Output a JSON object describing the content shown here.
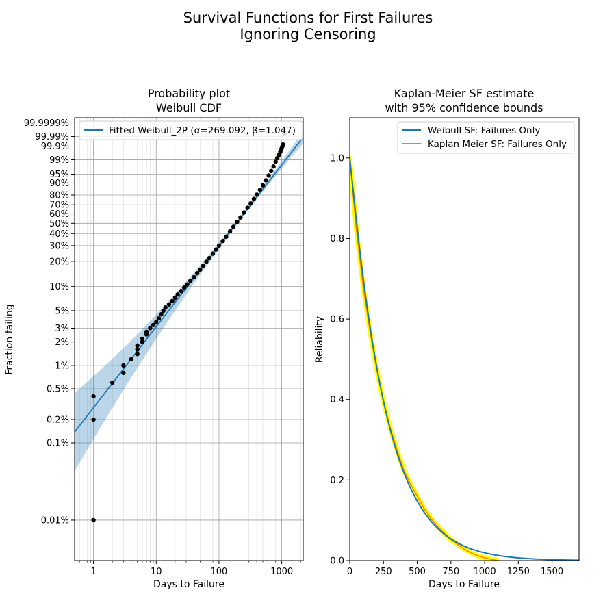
{
  "figure": {
    "title_line1": "Survival Functions for First Failures",
    "title_line2": "Ignoring Censoring"
  },
  "chart_data": [
    {
      "type": "scatter",
      "title_line1": "Probability plot",
      "title_line2": "Weibull CDF",
      "xlabel": "Days to Failure",
      "ylabel": "Fraction failing",
      "x_scale": "log",
      "y_scale": "weibull",
      "xlim": [
        0.5,
        2200
      ],
      "ylim": [
        3e-05,
        0.9999999
      ],
      "x_ticks": [
        {
          "v": 1,
          "label": "1"
        },
        {
          "v": 10,
          "label": "10"
        },
        {
          "v": 100,
          "label": "100"
        },
        {
          "v": 1000,
          "label": "1000"
        }
      ],
      "y_ticks": [
        {
          "v": 0.0001,
          "label": "0.01%"
        },
        {
          "v": 0.001,
          "label": "0.1%"
        },
        {
          "v": 0.002,
          "label": "0.2%"
        },
        {
          "v": 0.005,
          "label": "0.5%"
        },
        {
          "v": 0.01,
          "label": "1%"
        },
        {
          "v": 0.02,
          "label": "2%"
        },
        {
          "v": 0.03,
          "label": "3%"
        },
        {
          "v": 0.05,
          "label": "5%"
        },
        {
          "v": 0.1,
          "label": "10%"
        },
        {
          "v": 0.2,
          "label": "20%"
        },
        {
          "v": 0.3,
          "label": "30%"
        },
        {
          "v": 0.4,
          "label": "40%"
        },
        {
          "v": 0.5,
          "label": "50%"
        },
        {
          "v": 0.6,
          "label": "60%"
        },
        {
          "v": 0.7,
          "label": "70%"
        },
        {
          "v": 0.8,
          "label": "80%"
        },
        {
          "v": 0.9,
          "label": "90%"
        },
        {
          "v": 0.95,
          "label": "95%"
        },
        {
          "v": 0.99,
          "label": "99%"
        },
        {
          "v": 0.999,
          "label": "99.9%"
        },
        {
          "v": 0.9999,
          "label": "99.99%"
        },
        {
          "v": 0.999999,
          "label": "99.9999%"
        }
      ],
      "grid": true,
      "legend_position": "top-right",
      "fit": {
        "name": "Fitted Weibull_2P (α=269.092, β=1.047)",
        "alpha": 269.092,
        "beta": 1.047,
        "color": "#1f77b4",
        "band_color": "#1f77b4"
      },
      "points_color": "#000000",
      "points": [
        [
          1,
          0.0001
        ],
        [
          1,
          0.002
        ],
        [
          1,
          0.004
        ],
        [
          2,
          0.006
        ],
        [
          3,
          0.008
        ],
        [
          3,
          0.01
        ],
        [
          4,
          0.012
        ],
        [
          5,
          0.014
        ],
        [
          5,
          0.016
        ],
        [
          5,
          0.018
        ],
        [
          6,
          0.02
        ],
        [
          6,
          0.022
        ],
        [
          7,
          0.025
        ],
        [
          7,
          0.027
        ],
        [
          8,
          0.03
        ],
        [
          9,
          0.033
        ],
        [
          10,
          0.036
        ],
        [
          11,
          0.04
        ],
        [
          12,
          0.045
        ],
        [
          13,
          0.05
        ],
        [
          14,
          0.055
        ],
        [
          16,
          0.06
        ],
        [
          18,
          0.066
        ],
        [
          20,
          0.073
        ],
        [
          22,
          0.08
        ],
        [
          25,
          0.088
        ],
        [
          28,
          0.097
        ],
        [
          31,
          0.106
        ],
        [
          35,
          0.117
        ],
        [
          40,
          0.13
        ],
        [
          45,
          0.145
        ],
        [
          50,
          0.16
        ],
        [
          56,
          0.178
        ],
        [
          63,
          0.198
        ],
        [
          70,
          0.218
        ],
        [
          80,
          0.245
        ],
        [
          90,
          0.272
        ],
        [
          100,
          0.3
        ],
        [
          115,
          0.336
        ],
        [
          130,
          0.372
        ],
        [
          150,
          0.42
        ],
        [
          170,
          0.465
        ],
        [
          195,
          0.515
        ],
        [
          220,
          0.562
        ],
        [
          250,
          0.615
        ],
        [
          285,
          0.668
        ],
        [
          320,
          0.715
        ],
        [
          360,
          0.762
        ],
        [
          400,
          0.804
        ],
        [
          450,
          0.848
        ],
        [
          500,
          0.884
        ],
        [
          560,
          0.918
        ],
        [
          620,
          0.944
        ],
        [
          680,
          0.963
        ],
        [
          740,
          0.977
        ],
        [
          800,
          0.987
        ],
        [
          850,
          0.992
        ],
        [
          900,
          0.995
        ],
        [
          950,
          0.997
        ],
        [
          980,
          0.998
        ],
        [
          1000,
          0.9985
        ],
        [
          1030,
          0.999
        ],
        [
          1050,
          0.9993
        ],
        [
          1100,
          0.99995
        ]
      ]
    },
    {
      "type": "line",
      "title_line1": "Kaplan-Meier SF estimate",
      "title_line2": "with 95% confidence bounds",
      "xlabel": "Days to Failure",
      "ylabel": "Reliability",
      "xlim": [
        0,
        1700
      ],
      "ylim": [
        0,
        1.1
      ],
      "x_ticks": [
        0,
        250,
        500,
        750,
        1000,
        1250,
        1500
      ],
      "y_ticks": [
        {
          "v": 0.0,
          "label": "0.0"
        },
        {
          "v": 0.2,
          "label": "0.2"
        },
        {
          "v": 0.4,
          "label": "0.4"
        },
        {
          "v": 0.6,
          "label": "0.6"
        },
        {
          "v": 0.8,
          "label": "0.8"
        },
        {
          "v": 1.0,
          "label": "1.0"
        }
      ],
      "legend_position": "top-right",
      "series": [
        {
          "name": "Weibull SF: Failures Only",
          "color": "#1f77b4",
          "model": "weibull",
          "alpha": 269.092,
          "beta": 1.047
        },
        {
          "name": "Kaplan Meier SF: Failures Only",
          "color": "#ff7f0e",
          "band_color": "#ffff00",
          "x": [
            0,
            50,
            100,
            150,
            200,
            250,
            300,
            350,
            400,
            450,
            500,
            550,
            600,
            650,
            700,
            750,
            800,
            850,
            900,
            950,
            1000,
            1050,
            1100
          ],
          "y": [
            1.0,
            0.82,
            0.68,
            0.57,
            0.475,
            0.395,
            0.33,
            0.275,
            0.225,
            0.19,
            0.16,
            0.13,
            0.105,
            0.085,
            0.068,
            0.052,
            0.04,
            0.028,
            0.019,
            0.012,
            0.007,
            0.003,
            0.0
          ]
        }
      ]
    }
  ]
}
